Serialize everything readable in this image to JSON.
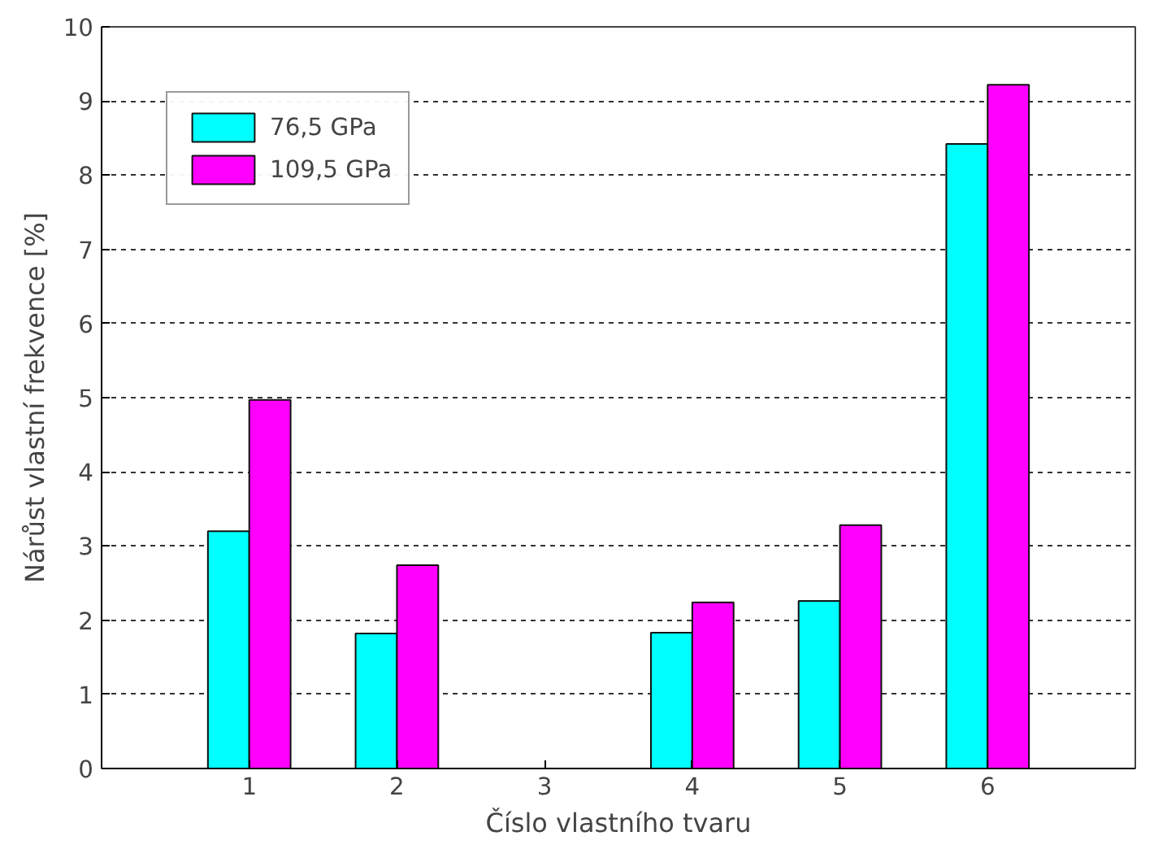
{
  "chart_data": {
    "type": "bar",
    "xlabel": "Číslo vlastního tvaru",
    "ylabel": "Nárůst vlastní frekvence [%]",
    "categories": [
      "1",
      "2",
      "3",
      "4",
      "5",
      "6"
    ],
    "series": [
      {
        "name": "76,5 GPa",
        "color": "#00ffff",
        "values": [
          3.2,
          1.82,
          null,
          1.83,
          2.26,
          8.42
        ]
      },
      {
        "name": "109,5 GPa",
        "color": "#ff00ff",
        "values": [
          4.97,
          2.74,
          null,
          2.24,
          3.28,
          9.22
        ]
      }
    ],
    "ylim": [
      0,
      10
    ],
    "yticks": [
      0,
      1,
      2,
      3,
      4,
      5,
      6,
      7,
      8,
      9,
      10
    ],
    "grid": "y",
    "legend": "top left"
  }
}
